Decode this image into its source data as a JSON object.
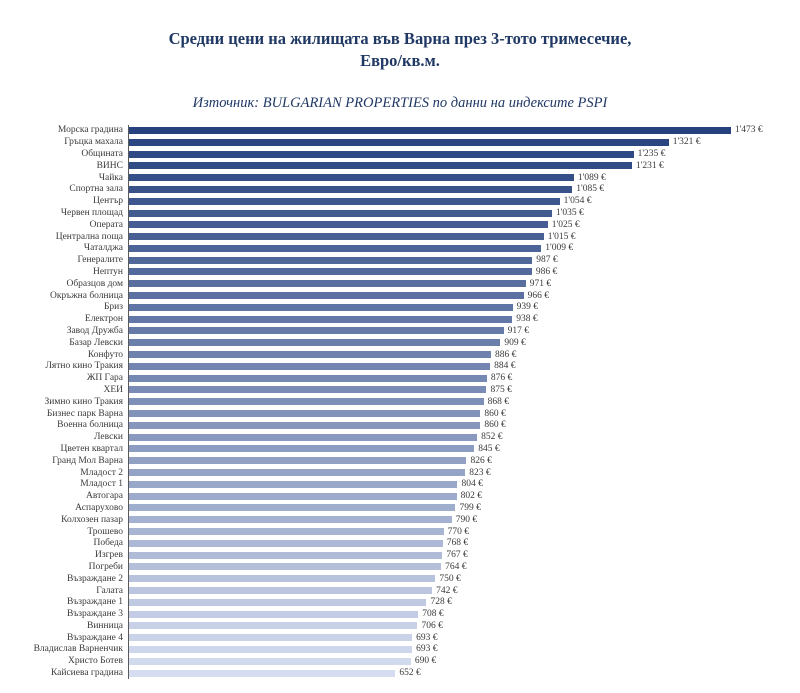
{
  "header": {
    "title_line1": "Средни цени на жилищата във Варна през 3-тото тримесечие,",
    "title_line2": "Евро/кв.м.",
    "subtitle": "Източник: BULGARIAN PROPERTIES по данни на индексите PSPI"
  },
  "chart_data": {
    "type": "bar",
    "orientation": "horizontal",
    "title": "Средни цени на жилищата във Варна през 3-тото тримесечие, Евро/кв.м.",
    "subtitle": "Източник: BULGARIAN PROPERTIES по данни на индексите PSPI",
    "unit": "€",
    "xlim": [
      0,
      1620
    ],
    "grid": false,
    "legend": false,
    "bar_color_start": "#26427E",
    "bar_color_end": "#D6DDF0",
    "categories": [
      "Морска градина",
      "Гръцка махала",
      "Общината",
      "ВИНС",
      "Чайка",
      "Спортна зала",
      "Център",
      "Червен площад",
      "Операта",
      "Централна поща",
      "Чаталджа",
      "Генералите",
      "Нептун",
      "Образцов дом",
      "Окръжна болница",
      "Бриз",
      "Електрон",
      "Завод Дружба",
      "Базар Левски",
      "Конфуто",
      "Лятно кино Тракия",
      "ЖП Гара",
      "ХЕИ",
      "Зимно кино Тракия",
      "Бизнес парк Варна",
      "Военна болница",
      "Левски",
      "Цветен квартал",
      "Гранд Мол Варна",
      "Младост 2",
      "Младост 1",
      "Автогара",
      "Аспарухово",
      "Колхозен пазар",
      "Трошево",
      "Победа",
      "Изгрев",
      "Погреби",
      "Възраждане 2",
      "Галата",
      "Възраждане 1",
      "Възраждане 3",
      "Винница",
      "Възраждане 4",
      "Владислав Варненчик",
      "Христо Ботев",
      "Кайсиева градина"
    ],
    "values": [
      1473,
      1321,
      1235,
      1231,
      1089,
      1085,
      1054,
      1035,
      1025,
      1015,
      1009,
      987,
      986,
      971,
      966,
      939,
      938,
      917,
      909,
      886,
      884,
      876,
      875,
      868,
      860,
      860,
      852,
      845,
      826,
      823,
      804,
      802,
      799,
      790,
      770,
      768,
      767,
      764,
      750,
      742,
      728,
      708,
      706,
      693,
      693,
      690,
      652
    ],
    "labels": [
      "1'473 €",
      "1'321 €",
      "1'235 €",
      "1'231 €",
      "1'089 €",
      "1'085 €",
      "1'054 €",
      "1'035 €",
      "1'025 €",
      "1'015 €",
      "1'009 €",
      "987 €",
      "986 €",
      "971 €",
      "966 €",
      "939 €",
      "938 €",
      "917 €",
      "909 €",
      "886 €",
      "884 €",
      "876 €",
      "875 €",
      "868 €",
      "860 €",
      "860 €",
      "852 €",
      "845 €",
      "826 €",
      "823 €",
      "804 €",
      "802 €",
      "799 €",
      "790 €",
      "770 €",
      "768 €",
      "767 €",
      "764 €",
      "750 €",
      "742 €",
      "728 €",
      "708 €",
      "706 €",
      "693 €",
      "693 €",
      "690 €",
      "652 €"
    ]
  }
}
